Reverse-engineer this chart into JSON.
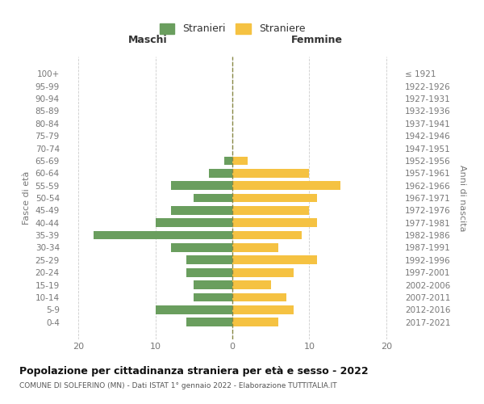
{
  "age_groups": [
    "100+",
    "95-99",
    "90-94",
    "85-89",
    "80-84",
    "75-79",
    "70-74",
    "65-69",
    "60-64",
    "55-59",
    "50-54",
    "45-49",
    "40-44",
    "35-39",
    "30-34",
    "25-29",
    "20-24",
    "15-19",
    "10-14",
    "5-9",
    "0-4"
  ],
  "birth_years": [
    "≤ 1921",
    "1922-1926",
    "1927-1931",
    "1932-1936",
    "1937-1941",
    "1942-1946",
    "1947-1951",
    "1952-1956",
    "1957-1961",
    "1962-1966",
    "1967-1971",
    "1972-1976",
    "1977-1981",
    "1982-1986",
    "1987-1991",
    "1992-1996",
    "1997-2001",
    "2002-2006",
    "2007-2011",
    "2012-2016",
    "2017-2021"
  ],
  "maschi": [
    0,
    0,
    0,
    0,
    0,
    0,
    0,
    -1,
    -3,
    -8,
    -5,
    -8,
    -10,
    -18,
    -8,
    -6,
    -6,
    -5,
    -5,
    -10,
    -6
  ],
  "femmine": [
    0,
    0,
    0,
    0,
    0,
    0,
    0,
    2,
    10,
    14,
    11,
    10,
    11,
    9,
    6,
    11,
    8,
    5,
    7,
    8,
    6
  ],
  "color_maschi": "#6a9e5e",
  "color_femmine": "#f5c242",
  "title": "Popolazione per cittadinanza straniera per età e sesso - 2022",
  "subtitle": "COMUNE DI SOLFERINO (MN) - Dati ISTAT 1° gennaio 2022 - Elaborazione TUTTITALIA.IT",
  "ylabel_left": "Fasce di età",
  "ylabel_right": "Anni di nascita",
  "xlabel_left": "Maschi",
  "xlabel_top_right": "Femmine",
  "legend_stranieri": "Stranieri",
  "legend_straniere": "Straniere",
  "xlim": [
    -22,
    22
  ],
  "bar_height": 0.7,
  "background_color": "#ffffff",
  "grid_color": "#cccccc",
  "text_color": "#777777"
}
